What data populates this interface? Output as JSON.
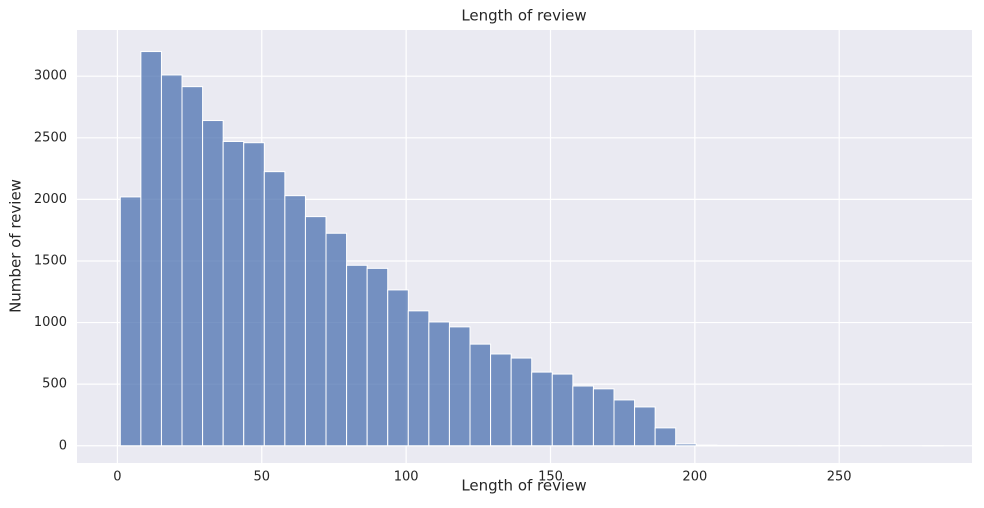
{
  "chart_data": {
    "type": "histogram",
    "title": "Length of review",
    "x_label": "Length of review",
    "y_label": "Number of review",
    "bins": [
      1,
      8.125,
      15.25,
      22.375,
      29.5,
      36.625,
      43.75,
      50.875,
      58,
      65.125,
      72.25,
      79.375,
      86.5,
      93.625,
      100.75,
      107.875,
      115,
      122.125,
      129.25,
      136.375,
      143.5,
      150.625,
      157.75,
      164.875,
      172,
      179.125,
      186.25,
      193.375,
      200.5,
      207.625,
      214.75,
      221.875,
      229,
      236.125,
      243.25,
      250.375,
      257.5,
      264.625,
      271.75,
      278.875,
      286
    ],
    "values": [
      2020,
      3200,
      3010,
      2915,
      2640,
      2470,
      2460,
      2225,
      2030,
      1860,
      1725,
      1465,
      1440,
      1265,
      1095,
      1005,
      965,
      825,
      745,
      712,
      598,
      582,
      485,
      462,
      372,
      315,
      145,
      15,
      5,
      3,
      2,
      2,
      1,
      1,
      1,
      0,
      1,
      0,
      0,
      1
    ],
    "color": "#4c72b0",
    "xlim": [
      -14,
      296
    ],
    "ylim": [
      -140,
      3375
    ],
    "xticks": [
      0,
      50,
      100,
      150,
      200,
      250
    ],
    "yticks": [
      0,
      500,
      1000,
      1500,
      2000,
      2500,
      3000
    ],
    "grid": true
  }
}
